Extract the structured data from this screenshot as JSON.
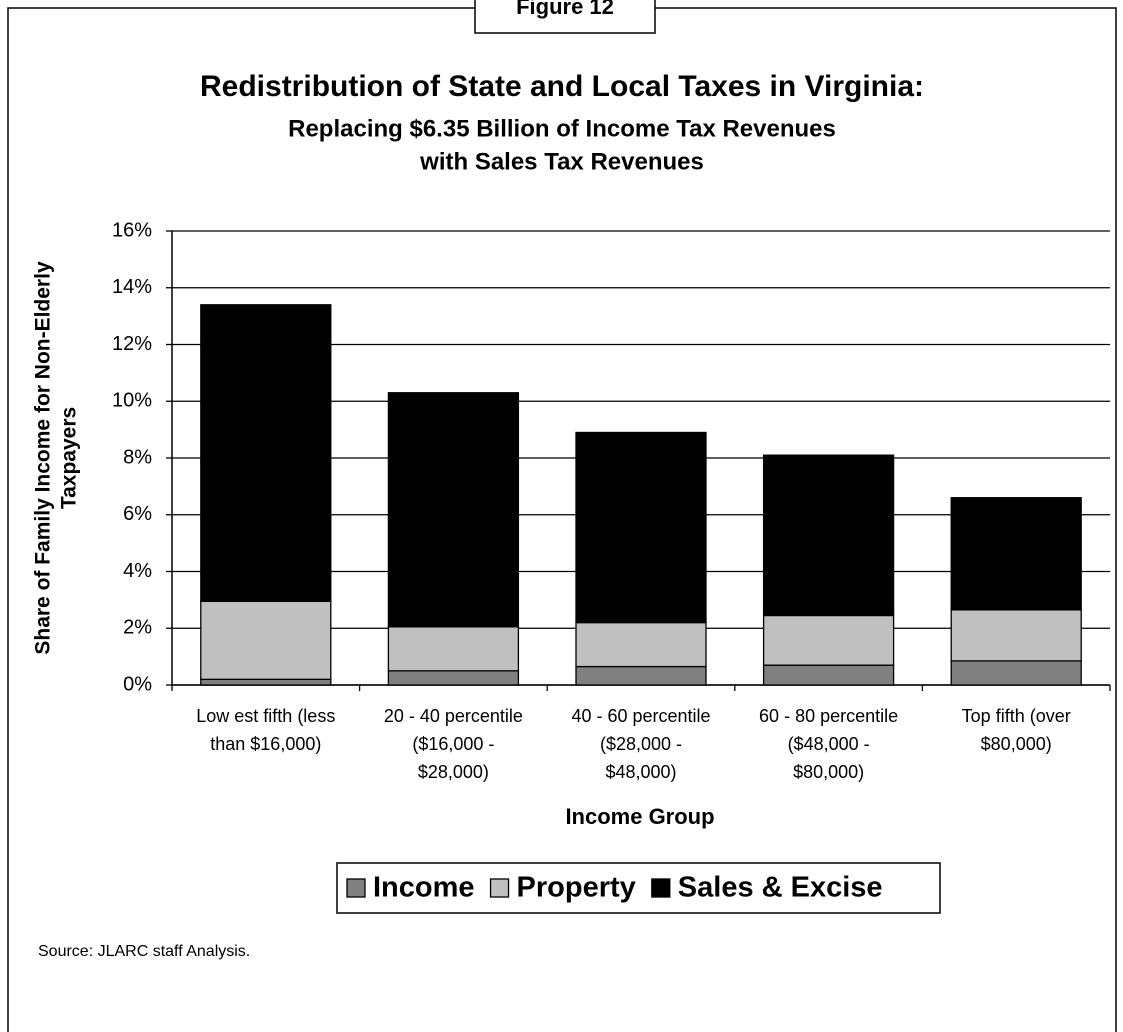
{
  "chart_data": {
    "type": "stacked_bar",
    "figure_label": "Figure 12",
    "title": "Redistribution of State and Local Taxes in Virginia:",
    "subtitle": [
      "Replacing $6.35 Billion of Income Tax Revenues",
      "with Sales Tax Revenues"
    ],
    "categories": [
      [
        "Low est fifth (less",
        "than $16,000)"
      ],
      [
        "20 - 40 percentile",
        "($16,000 -",
        "$28,000)"
      ],
      [
        "40 - 60 percentile",
        "($28,000 -",
        "$48,000)"
      ],
      [
        "60 - 80 percentile",
        "($48,000 -",
        "$80,000)"
      ],
      [
        "Top fifth (over",
        "$80,000)"
      ]
    ],
    "series": [
      {
        "name": "Income",
        "color": "#808080",
        "values": [
          0.2,
          0.5,
          0.65,
          0.7,
          0.85
        ]
      },
      {
        "name": "Property",
        "color": "#c0c0c0",
        "values": [
          2.75,
          1.55,
          1.55,
          1.75,
          1.8
        ]
      },
      {
        "name": "Sales & Excise",
        "color": "#000000",
        "values": [
          10.45,
          8.25,
          6.7,
          5.65,
          3.95
        ]
      }
    ],
    "ylabel": [
      "Share of Family Income for Non-Elderly",
      "Taxpayers"
    ],
    "xlabel": "Income Group",
    "ylim": [
      0,
      16
    ],
    "yticks": [
      {
        "value": 0,
        "label": "0%"
      },
      {
        "value": 2,
        "label": "2%"
      },
      {
        "value": 4,
        "label": "4%"
      },
      {
        "value": 6,
        "label": "6%"
      },
      {
        "value": 8,
        "label": "8%"
      },
      {
        "value": 10,
        "label": "10%"
      },
      {
        "value": 12,
        "label": "12%"
      },
      {
        "value": 14,
        "label": "14%"
      },
      {
        "value": 16,
        "label": "16%"
      }
    ],
    "grid": true,
    "legend": "bottom",
    "source": "Source:  JLARC staff Analysis."
  }
}
